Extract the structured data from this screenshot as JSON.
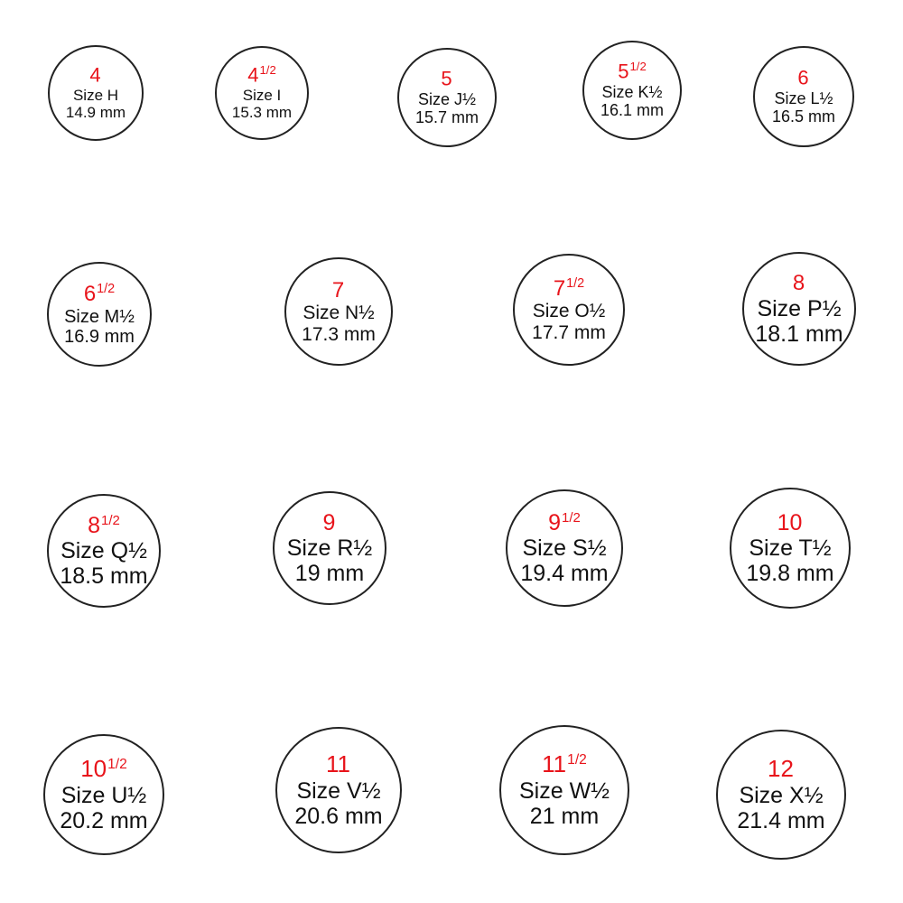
{
  "colors": {
    "us_size": "#e8141b",
    "text": "#111111",
    "ring_outline": "#222222",
    "background": "#ffffff"
  },
  "rings": [
    {
      "us": "4",
      "fraction": "",
      "uk": "Size H",
      "mm": "14.9 mm"
    },
    {
      "us": "4",
      "fraction": "1/2",
      "uk": "Size I",
      "mm": "15.3 mm"
    },
    {
      "us": "5",
      "fraction": "",
      "uk": "Size J½",
      "mm": "15.7 mm"
    },
    {
      "us": "5",
      "fraction": "1/2",
      "uk": "Size K½",
      "mm": "16.1 mm"
    },
    {
      "us": "6",
      "fraction": "",
      "uk": "Size L½",
      "mm": "16.5 mm"
    },
    {
      "us": "6",
      "fraction": "1/2",
      "uk": "Size M½",
      "mm": "16.9 mm"
    },
    {
      "us": "7",
      "fraction": "",
      "uk": "Size N½",
      "mm": "17.3 mm"
    },
    {
      "us": "7",
      "fraction": "1/2",
      "uk": "Size O½",
      "mm": "17.7 mm"
    },
    {
      "us": "8",
      "fraction": "",
      "uk": "Size P½",
      "mm": "18.1 mm"
    },
    {
      "us": "8",
      "fraction": "1/2",
      "uk": "Size Q½",
      "mm": "18.5 mm"
    },
    {
      "us": "9",
      "fraction": "",
      "uk": "Size R½",
      "mm": "19 mm"
    },
    {
      "us": "9",
      "fraction": "1/2",
      "uk": "Size S½",
      "mm": "19.4 mm"
    },
    {
      "us": "10",
      "fraction": "",
      "uk": "Size T½",
      "mm": "19.8 mm"
    },
    {
      "us": "10",
      "fraction": "1/2",
      "uk": "Size U½",
      "mm": "20.2 mm"
    },
    {
      "us": "11",
      "fraction": "",
      "uk": "Size V½",
      "mm": "20.6 mm"
    },
    {
      "us": "11",
      "fraction": "1/2",
      "uk": "Size W½",
      "mm": "21 mm"
    },
    {
      "us": "12",
      "fraction": "",
      "uk": "Size X½",
      "mm": "21.4 mm"
    }
  ]
}
